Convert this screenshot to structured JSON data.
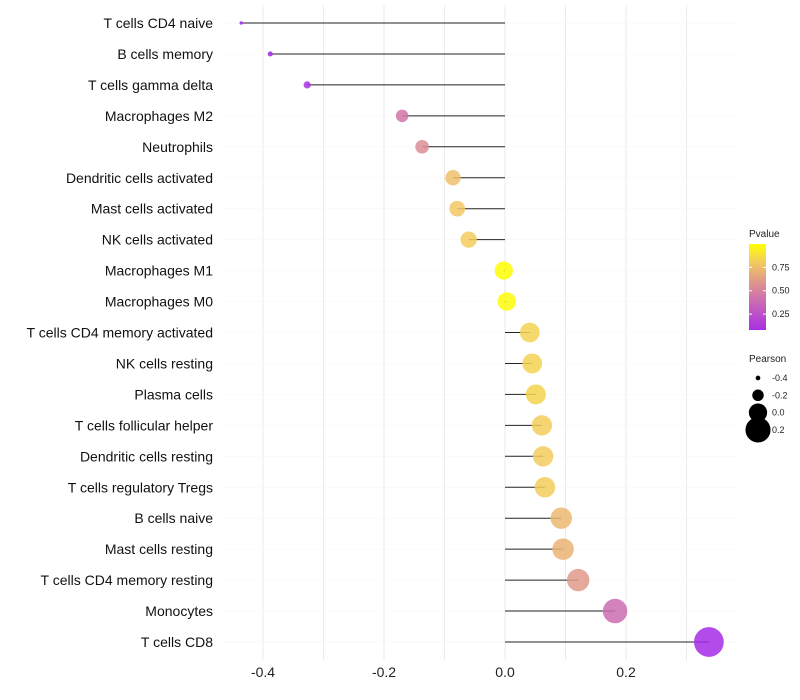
{
  "chart_data": {
    "type": "lollipop",
    "title": "",
    "xlabel": "",
    "ylabel": "",
    "xlim": [
      -0.45,
      0.35
    ],
    "xticks": [
      -0.4,
      -0.2,
      0.0,
      0.2
    ],
    "xtick_labels": [
      "-0.4",
      "-0.2",
      "0.0",
      "0.2"
    ],
    "grid": true,
    "categories": [
      "T cells CD4 naive",
      "B cells memory",
      "T cells gamma delta",
      "Macrophages M2",
      "Neutrophils",
      "Dendritic cells activated",
      "Mast cells activated",
      "NK cells activated",
      "Macrophages M1",
      "Macrophages M0",
      "T cells CD4 memory activated",
      "NK cells resting",
      "Plasma cells",
      "T cells follicular helper",
      "Dendritic cells resting",
      "T cells regulatory  Tregs ",
      "B cells naive",
      "Mast cells resting",
      "T cells CD4 memory resting",
      "Monocytes",
      "T cells CD8"
    ],
    "pearson": [
      -0.436,
      -0.388,
      -0.327,
      -0.17,
      -0.137,
      -0.086,
      -0.079,
      -0.06,
      -0.002,
      0.003,
      0.041,
      0.045,
      0.051,
      0.061,
      0.063,
      0.066,
      0.093,
      0.096,
      0.121,
      0.182,
      0.337
    ],
    "pvalue": [
      0.02,
      0.05,
      0.1,
      0.45,
      0.55,
      0.75,
      0.78,
      0.8,
      0.99,
      0.98,
      0.82,
      0.82,
      0.83,
      0.8,
      0.79,
      0.8,
      0.72,
      0.7,
      0.6,
      0.4,
      0.06
    ],
    "legend_color": {
      "title": "Pvalue",
      "ticks": [
        0.25,
        0.5,
        0.75
      ],
      "tick_labels": [
        "0.25",
        "0.50",
        "0.75"
      ],
      "low_color": "#A020F0",
      "high_color": "#FFFF00",
      "placement": "right"
    },
    "legend_size": {
      "title": "Pearson",
      "values": [
        -0.4,
        -0.2,
        0.0,
        0.2
      ],
      "labels": [
        "-0.4",
        "-0.2",
        "0.0",
        "0.2"
      ],
      "placement": "right"
    }
  }
}
